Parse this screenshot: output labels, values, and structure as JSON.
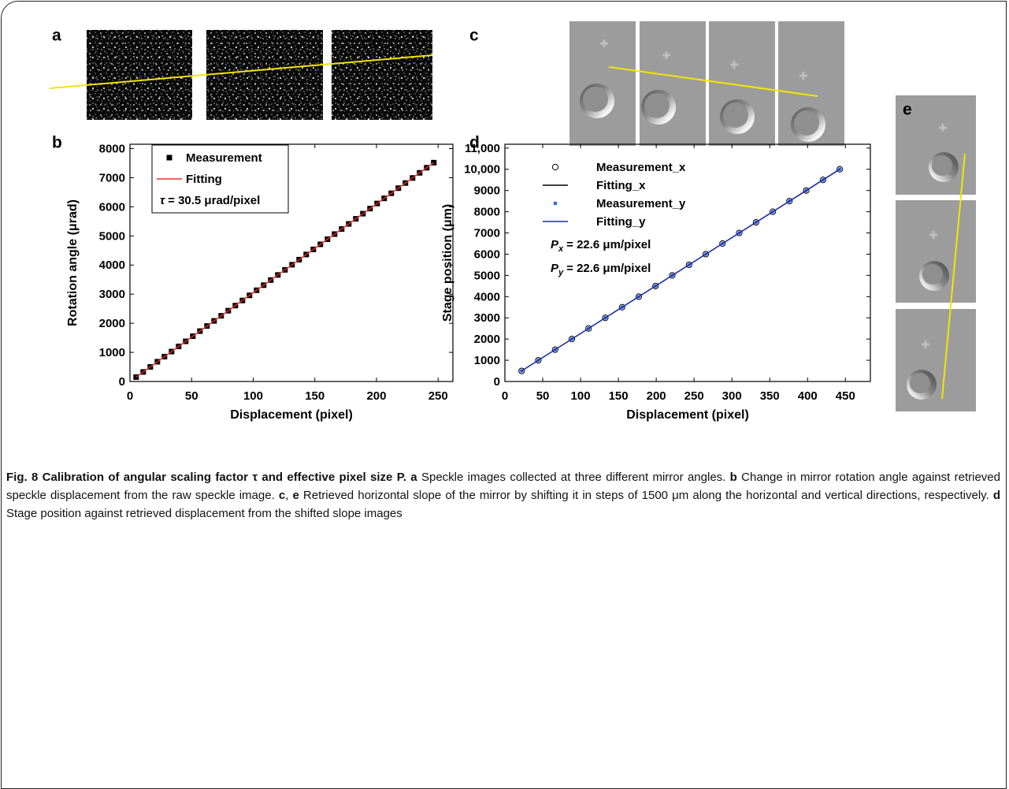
{
  "panel_labels": [
    "a",
    "b",
    "c",
    "d",
    "e"
  ],
  "chart_data": [
    {
      "type": "scatter",
      "xlabel": "Displacement (pixel)",
      "ylabel": "Rotation angle (μrad)",
      "xlim": [
        0,
        262
      ],
      "ylim": [
        0,
        8150
      ],
      "xticks": [
        0,
        50,
        100,
        150,
        200,
        250
      ],
      "yticks": [
        0,
        1000,
        2000,
        3000,
        4000,
        5000,
        6000,
        7000,
        8000
      ],
      "legend": "upper left",
      "legend_frame": true,
      "series": [
        {
          "name": "Measurement",
          "color": "#000000",
          "marker": "square",
          "x": [
            5,
            10.75,
            16.5,
            22.25,
            28,
            33.75,
            39.5,
            45.25,
            51,
            56.75,
            62.5,
            68.25,
            74,
            79.75,
            85.5,
            91.25,
            97,
            102.75,
            108.5,
            114.25,
            120,
            125.75,
            131.5,
            137.25,
            143,
            148.75,
            154.5,
            160.25,
            166,
            171.75,
            177.5,
            183.25,
            189,
            194.75,
            200.5,
            206.25,
            212,
            217.75,
            223.5,
            229.25,
            235,
            240.75,
            246.5
          ],
          "values": [
            152,
            328,
            503,
            679,
            854,
            1029,
            1205,
            1380,
            1556,
            1731,
            1906,
            2082,
            2257,
            2432,
            2608,
            2783,
            2959,
            3134,
            3309,
            3485,
            3660,
            3835,
            4011,
            4186,
            4362,
            4537,
            4712,
            4888,
            5063,
            5238,
            5414,
            5589,
            5765,
            5940,
            6115,
            6291,
            6466,
            6641,
            6817,
            6992,
            7168,
            7343,
            7518
          ]
        },
        {
          "name": "Fitting",
          "color": "#e8302a",
          "marker": "line",
          "x": [
            5,
            246.5
          ],
          "values": [
            152,
            7518
          ]
        }
      ],
      "annotations": [
        {
          "symbol": "τ",
          "text": "= 30.5 μrad/pixel"
        }
      ]
    },
    {
      "type": "scatter",
      "xlabel": "Displacement (pixel)",
      "ylabel": "Stage position (μm)",
      "xlim": [
        0,
        483
      ],
      "ylim": [
        0,
        11180
      ],
      "xticks": [
        0,
        50,
        100,
        150,
        200,
        250,
        300,
        350,
        400,
        450
      ],
      "yticks": [
        0,
        1000,
        2000,
        3000,
        4000,
        5000,
        6000,
        7000,
        8000,
        9000,
        {
          "value": 10000,
          "label": "10,000"
        },
        {
          "value": 11000,
          "label": "11,000"
        }
      ],
      "legend": "upper left",
      "legend_frame": false,
      "series": [
        {
          "name": "Measurement_x",
          "color": "#000000",
          "marker": "circle",
          "x": [
            22.1,
            44.2,
            66.4,
            88.5,
            110.6,
            132.7,
            154.9,
            177,
            199.1,
            221.2,
            243.4,
            265.5,
            287.6,
            309.7,
            331.9,
            354,
            376.1,
            398.2,
            420.4,
            442.5
          ],
          "values": [
            500,
            1000,
            1500,
            2000,
            2500,
            3000,
            3500,
            4000,
            4500,
            5000,
            5500,
            6000,
            6500,
            7000,
            7500,
            8000,
            8500,
            9000,
            9500,
            10000
          ]
        },
        {
          "name": "Fitting_x",
          "color": "#000000",
          "marker": "line",
          "x": [
            22.1,
            442.5
          ],
          "values": [
            500,
            10000
          ]
        },
        {
          "name": "Measurement_y",
          "color": "#2a62d6",
          "marker": "star",
          "x": [
            22.1,
            44.2,
            66.4,
            88.5,
            110.6,
            132.7,
            154.9,
            177,
            199.1,
            221.2,
            243.4,
            265.5,
            287.6,
            309.7,
            331.9,
            354,
            376.1,
            398.2,
            420.4,
            442.5
          ],
          "values": [
            500,
            1000,
            1500,
            2000,
            2500,
            3000,
            3500,
            4000,
            4500,
            5000,
            5500,
            6000,
            6500,
            7000,
            7500,
            8000,
            8500,
            9000,
            9500,
            10000
          ]
        },
        {
          "name": "Fitting_y",
          "color": "#1a2fb8",
          "marker": "line",
          "x": [
            22.1,
            442.5
          ],
          "values": [
            500,
            10000
          ]
        }
      ],
      "annotations": [
        {
          "symbol": "P",
          "subscript": "x",
          "text": "= 22.6 μm/pixel"
        },
        {
          "symbol": "P",
          "subscript": "y",
          "text": "= 22.6 μm/pixel"
        }
      ]
    }
  ],
  "caption": {
    "title": "Fig. 8 Calibration of angular scaling factor τ and effective pixel size P.",
    "items": [
      {
        "label": "a",
        "text": " Speckle images collected at three different mirror angles. "
      },
      {
        "label": "b",
        "text": " Change in mirror rotation angle against retrieved speckle displacement from the raw speckle image. "
      },
      {
        "label": "c",
        "text": ", "
      },
      {
        "label": "e",
        "text": " Retrieved horizontal slope of the mirror by shifting it in steps of 1500 μm along the horizontal and vertical directions, respectively. "
      },
      {
        "label": "d",
        "text": " Stage position against retrieved displacement from the shifted slope images"
      }
    ]
  }
}
